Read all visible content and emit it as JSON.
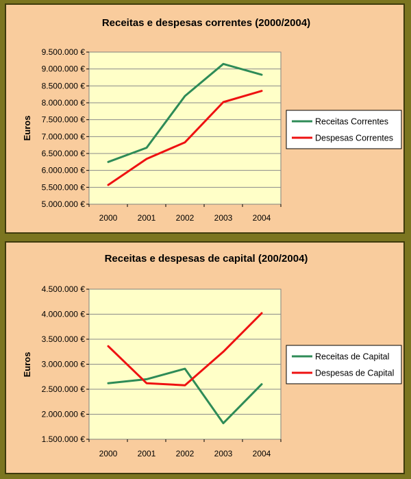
{
  "chart_data": [
    {
      "type": "line",
      "title": "Receitas e despesas correntes (2000/2004)",
      "xlabel": "",
      "ylabel": "Euros",
      "categories": [
        "2000",
        "2001",
        "2002",
        "2003",
        "2004"
      ],
      "yticks": [
        "5.000.000 €",
        "5.500.000 €",
        "6.000.000 €",
        "6.500.000 €",
        "7.000.000 €",
        "7.500.000 €",
        "8.000.000 €",
        "8.500.000 €",
        "9.000.000 €",
        "9.500.000 €"
      ],
      "ylim": [
        5000000,
        9500000
      ],
      "grid": true,
      "legend_position": "right",
      "series": [
        {
          "name": "Receitas Correntes",
          "color": "#2e8b57",
          "values": [
            6250000,
            6670000,
            8200000,
            9150000,
            8830000
          ]
        },
        {
          "name": "Despesas Correntes",
          "color": "#ee1111",
          "values": [
            5570000,
            6340000,
            6830000,
            8020000,
            8350000
          ]
        }
      ]
    },
    {
      "type": "line",
      "title": "Receitas e despesas de capital (200/2004)",
      "xlabel": "",
      "ylabel": "Euros",
      "categories": [
        "2000",
        "2001",
        "2002",
        "2003",
        "2004"
      ],
      "yticks": [
        "1.500.000 €",
        "2.000.000 €",
        "2.500.000 €",
        "3.000.000 €",
        "3.500.000 €",
        "4.000.000 €",
        "4.500.000 €"
      ],
      "ylim": [
        1500000,
        4500000
      ],
      "grid": true,
      "legend_position": "right",
      "series": [
        {
          "name": "Receitas de Capital",
          "color": "#2e8b57",
          "values": [
            2620000,
            2700000,
            2910000,
            1820000,
            2600000
          ]
        },
        {
          "name": "Despesas de Capital",
          "color": "#ee1111",
          "values": [
            3360000,
            2620000,
            2580000,
            3250000,
            4020000
          ]
        }
      ]
    }
  ],
  "colors": {
    "plot_background": "#ffffc8",
    "panel_background": "#f9cc9d",
    "frame": "#7b7520"
  }
}
